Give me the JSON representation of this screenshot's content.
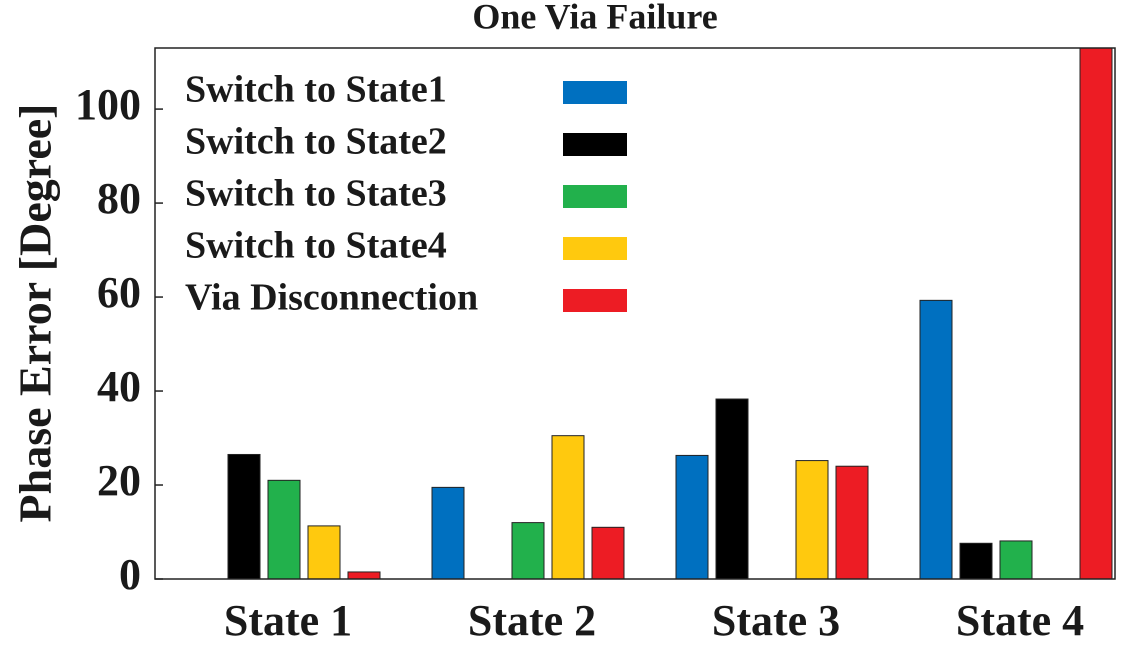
{
  "chart_data": {
    "type": "bar",
    "title": "One Via Failure",
    "y_label": "Phase Error [Degree]",
    "categories": [
      "State 1",
      "State 2",
      "State 3",
      "State 4"
    ],
    "series": [
      {
        "name": "Switch to State1",
        "color": "#0070c0",
        "values": [
          0,
          19.5,
          26.3,
          59.3
        ]
      },
      {
        "name": "Switch to State2",
        "color": "#000000",
        "values": [
          26.5,
          0,
          38.3,
          7.6
        ]
      },
      {
        "name": "Switch to State3",
        "color": "#22b14c",
        "values": [
          21,
          12,
          0,
          8.1
        ]
      },
      {
        "name": "Switch to State4",
        "color": "#ffc90e",
        "values": [
          11.3,
          30.5,
          25.2,
          0
        ]
      },
      {
        "name": "Via Disconnection",
        "color": "#ed1c24",
        "values": [
          1.5,
          11,
          24,
          113
        ]
      }
    ],
    "ylim": [
      0,
      113
    ],
    "yticks": [
      0,
      20,
      40,
      60,
      80,
      100
    ],
    "grid": false,
    "legend": "upper left"
  }
}
